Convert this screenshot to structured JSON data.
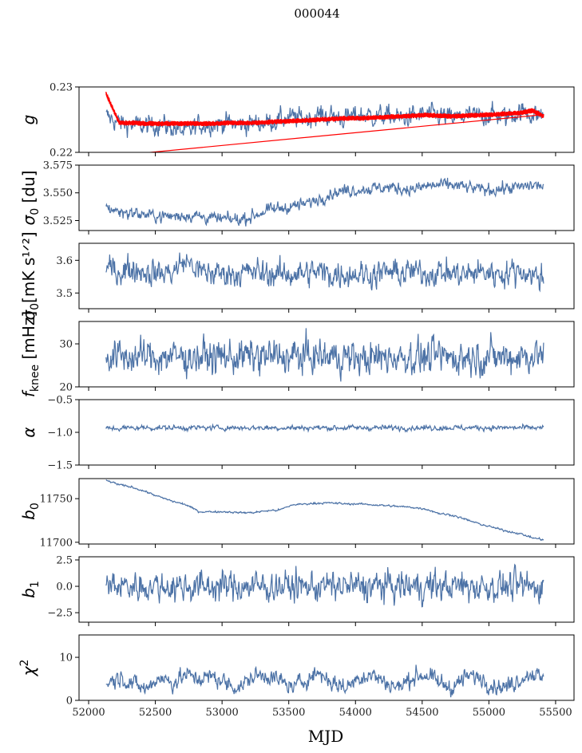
{
  "chart_data": {
    "type": "line",
    "title": "000044",
    "xlabel": "MJD",
    "xlim": [
      51928,
      55638
    ],
    "xticks": [
      52000,
      52500,
      53000,
      53500,
      54000,
      54500,
      55000,
      55500
    ],
    "xtick_labels": [
      "52000",
      "52500",
      "53000",
      "53500",
      "54000",
      "54500",
      "55000",
      "55500"
    ],
    "x": [
      52130,
      52230,
      52330,
      52430,
      52530,
      52630,
      52730,
      52830,
      52930,
      53030,
      53130,
      53230,
      53330,
      53430,
      53530,
      53630,
      53730,
      53830,
      53930,
      54030,
      54130,
      54230,
      54330,
      54430,
      54530,
      54630,
      54730,
      54830,
      54930,
      55030,
      55130,
      55230,
      55330,
      55410
    ],
    "series_color": "#4c72a6",
    "model_color": "#ff0000",
    "panels": [
      {
        "ylabel": "g",
        "ylim": [
          0.22,
          0.23
        ],
        "yticks": [
          0.22,
          0.23
        ],
        "ytick_labels": [
          "0.22",
          "0.23"
        ],
        "series": [
          {
            "name": "g",
            "noise": 0.0007,
            "values": [
              0.2255,
              0.2245,
              0.2242,
              0.224,
              0.2243,
              0.2238,
              0.223,
              0.2242,
              0.2244,
              0.2245,
              0.2242,
              0.2244,
              0.2246,
              0.225,
              0.2253,
              0.2252,
              0.2257,
              0.2255,
              0.2252,
              0.2258,
              0.2255,
              0.2256,
              0.2252,
              0.2255,
              0.2258,
              0.2256,
              0.2252,
              0.2256,
              0.2255,
              0.2258,
              0.2254,
              0.2262,
              0.2258,
              0.2257
            ]
          },
          {
            "name": "g model",
            "noise": 0.0004,
            "values": [
              0.229,
              0.2245,
              0.2245,
              0.2244,
              0.2244,
              0.2244,
              0.2244,
              0.2244,
              0.2244,
              0.2245,
              0.2245,
              0.2245,
              0.2246,
              0.2247,
              0.2248,
              0.2249,
              0.225,
              0.2251,
              0.2252,
              0.2252,
              0.2253,
              0.2254,
              0.2255,
              0.2256,
              0.2257,
              0.2256,
              0.2255,
              0.2256,
              0.2257,
              0.2258,
              0.2259,
              0.226,
              0.2264,
              0.2255
            ]
          }
        ]
      },
      {
        "ylabel": "σ0 [du]",
        "ylim": [
          3.516,
          3.575
        ],
        "yticks": [
          3.525,
          3.55,
          3.575
        ],
        "ytick_labels": [
          "3.525",
          "3.550",
          "3.575"
        ],
        "series": [
          {
            "name": "sigma0_du",
            "noise": 0.0025,
            "values": [
              3.537,
              3.533,
              3.532,
              3.53,
              3.529,
              3.529,
              3.53,
              3.529,
              3.527,
              3.526,
              3.526,
              3.529,
              3.534,
              3.536,
              3.538,
              3.54,
              3.545,
              3.55,
              3.552,
              3.553,
              3.554,
              3.555,
              3.554,
              3.553,
              3.556,
              3.557,
              3.557,
              3.555,
              3.553,
              3.553,
              3.554,
              3.555,
              3.557,
              3.556
            ]
          }
        ]
      },
      {
        "ylabel": "σ0 [mK s^1/2]",
        "ylim": [
          3.452,
          3.652
        ],
        "yticks": [
          3.5,
          3.6
        ],
        "ytick_labels": [
          "3.5",
          "3.6"
        ],
        "series": [
          {
            "name": "sigma0_mK",
            "noise": 0.018,
            "values": [
              3.575,
              3.565,
              3.575,
              3.565,
              3.56,
              3.565,
              3.6,
              3.565,
              3.56,
              3.56,
              3.56,
              3.565,
              3.56,
              3.555,
              3.56,
              3.56,
              3.565,
              3.555,
              3.56,
              3.56,
              3.555,
              3.565,
              3.56,
              3.565,
              3.56,
              3.565,
              3.56,
              3.555,
              3.565,
              3.56,
              3.56,
              3.57,
              3.555,
              3.545
            ]
          }
        ]
      },
      {
        "ylabel": "f_knee [mHz]",
        "ylim": [
          20,
          35.2
        ],
        "yticks": [
          20,
          30
        ],
        "ytick_labels": [
          "20",
          "30"
        ],
        "series": [
          {
            "name": "fknee",
            "noise": 1.8,
            "values": [
              27,
              27,
              27,
              27,
              27,
              27,
              27,
              27,
              27,
              27,
              27,
              27,
              27,
              27,
              27,
              27,
              27,
              27,
              27,
              26.5,
              26.5,
              27,
              27,
              27,
              27,
              27,
              27,
              27,
              27,
              27,
              27,
              27,
              27.5,
              27.5
            ]
          }
        ]
      },
      {
        "ylabel": "α",
        "ylim": [
          -1.5,
          -0.5
        ],
        "yticks": [
          -1.5,
          -1.0,
          -0.5
        ],
        "ytick_labels": [
          "−1.5",
          "−1.0",
          "−0.5"
        ],
        "series": [
          {
            "name": "alpha",
            "noise": 0.018,
            "values": [
              -0.94,
              -0.94,
              -0.93,
              -0.93,
              -0.93,
              -0.93,
              -0.93,
              -0.93,
              -0.93,
              -0.93,
              -0.93,
              -0.93,
              -0.93,
              -0.93,
              -0.93,
              -0.93,
              -0.93,
              -0.93,
              -0.93,
              -0.93,
              -0.93,
              -0.93,
              -0.93,
              -0.93,
              -0.93,
              -0.93,
              -0.93,
              -0.93,
              -0.93,
              -0.93,
              -0.93,
              -0.93,
              -0.93,
              -0.93
            ]
          }
        ]
      },
      {
        "ylabel": "b0",
        "ylim": [
          11698,
          11773
        ],
        "yticks": [
          11700,
          11750
        ],
        "ytick_labels": [
          "11700",
          "11750"
        ],
        "series": [
          {
            "name": "b0",
            "noise": 0.5,
            "values": [
              11771,
              11766,
              11763,
              11758,
              11752,
              11747,
              11743,
              11735,
              11735,
              11735,
              11734,
              11734,
              11736,
              11737,
              11743,
              11744,
              11745,
              11745,
              11744,
              11744,
              11743,
              11742,
              11741,
              11740,
              11738,
              11733,
              11731,
              11726,
              11721,
              11717,
              11713,
              11710,
              11705,
              11703
            ]
          }
        ]
      },
      {
        "ylabel": "b1",
        "ylim": [
          -3.4,
          2.8
        ],
        "yticks": [
          -2.5,
          0.0,
          2.5
        ],
        "ytick_labels": [
          "−2.5",
          "0.0",
          "2.5"
        ],
        "series": [
          {
            "name": "b1",
            "noise": 0.65,
            "values": [
              0,
              0,
              0,
              0,
              0,
              0,
              0,
              0,
              0,
              0,
              0,
              0,
              0,
              0,
              0,
              0,
              0,
              0,
              0,
              0,
              0,
              0,
              0,
              0,
              0,
              0,
              0,
              0,
              0,
              0,
              0,
              0,
              0,
              0
            ]
          }
        ]
      },
      {
        "ylabel": "χ2",
        "ylim": [
          0,
          15.2
        ],
        "yticks": [
          0,
          10
        ],
        "ytick_labels": [
          "0",
          "10"
        ],
        "series": [
          {
            "name": "chi2",
            "noise": 0.9,
            "values": [
              4,
              5.5,
              4,
              2.5,
              5.5,
              4,
              6,
              5,
              5.5,
              4,
              3,
              5.5,
              6,
              4.5,
              3,
              5,
              6.5,
              4,
              3,
              5.5,
              6,
              4,
              3,
              5.5,
              6,
              4,
              3,
              5.5,
              5.5,
              3.5,
              3,
              5,
              6.5,
              4.5
            ]
          }
        ]
      }
    ]
  }
}
